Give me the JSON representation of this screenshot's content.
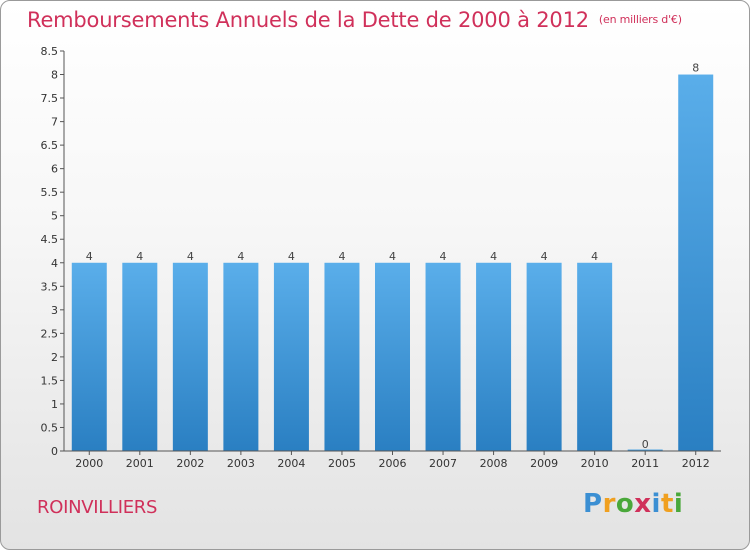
{
  "header": {
    "title": "Remboursements Annuels de la Dette de 2000 à 2012",
    "unit": "(en milliers d'€)"
  },
  "footer": {
    "commune": "ROINVILLIERS",
    "logo": {
      "letters": [
        "P",
        "r",
        "o",
        "x",
        "i",
        "t",
        "i"
      ],
      "colors": [
        "#3b8fd3",
        "#f0a020",
        "#4aa83a",
        "#d0305a",
        "#3b8fd3",
        "#f0a020",
        "#4aa83a"
      ]
    }
  },
  "chart_data": {
    "type": "bar",
    "title": "Remboursements Annuels de la Dette de 2000 à 2012",
    "xlabel": "",
    "ylabel": "",
    "categories": [
      "2000",
      "2001",
      "2002",
      "2003",
      "2004",
      "2005",
      "2006",
      "2007",
      "2008",
      "2009",
      "2010",
      "2011",
      "2012"
    ],
    "values": [
      4,
      4,
      4,
      4,
      4,
      4,
      4,
      4,
      4,
      4,
      4,
      0,
      8
    ],
    "ylim": [
      0,
      8.5
    ],
    "yticks": [
      0,
      0.5,
      1,
      1.5,
      2,
      2.5,
      3,
      3.5,
      4,
      4.5,
      5,
      5.5,
      6,
      6.5,
      7,
      7.5,
      8,
      8.5
    ],
    "ytick_labels": [
      "0",
      "0.5",
      "1",
      "1.5",
      "2",
      "2.5",
      "3",
      "3.5",
      "4",
      "4.5",
      "5",
      "5.5",
      "6",
      "6.5",
      "7",
      "7.5",
      "8",
      "8.5"
    ],
    "data_labels": [
      "4",
      "4",
      "4",
      "4",
      "4",
      "4",
      "4",
      "4",
      "4",
      "4",
      "4",
      "0",
      "8"
    ],
    "bar_color_top": "#5aaeea",
    "bar_color_bottom": "#2a7fc2",
    "grid": false,
    "legend": "none"
  }
}
